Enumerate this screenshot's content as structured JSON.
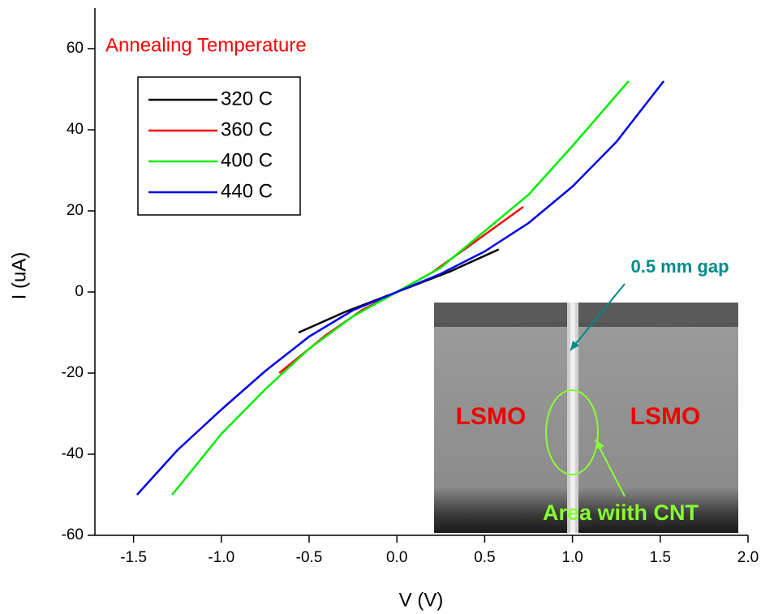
{
  "chart_data": {
    "type": "line",
    "xlabel": "V (V)",
    "ylabel": "I (uA)",
    "legend_title": "Annealing Temperature",
    "legend_title_color": "#ff0000",
    "xlim": [
      -1.72,
      2.0
    ],
    "ylim": [
      -60,
      70
    ],
    "xticks": [
      -1.5,
      {
        "value": -1.0,
        "label": "-1.0"
      },
      -0.5,
      {
        "value": 0.0,
        "label": "0.0"
      },
      0.5,
      {
        "value": 1.0,
        "label": "1.0"
      },
      1.5,
      {
        "value": 2.0,
        "label": "2.0"
      }
    ],
    "yticks": [
      -60,
      -40,
      -20,
      0,
      20,
      40,
      60
    ],
    "series": [
      {
        "name": "320 C",
        "color": "#000000",
        "x": [
          -0.56,
          -0.3,
          0,
          0.3,
          0.58
        ],
        "values": [
          -10,
          -5,
          0,
          5,
          10.5
        ]
      },
      {
        "name": "360 C",
        "color": "#ff0000",
        "x": [
          -0.67,
          -0.4,
          -0.2,
          0,
          0.2,
          0.4,
          0.72
        ],
        "values": [
          -20,
          -10.5,
          -4.5,
          0,
          4.8,
          11,
          21
        ]
      },
      {
        "name": "400 C",
        "color": "#00ee00",
        "x": [
          -1.28,
          -1.0,
          -0.75,
          -0.5,
          -0.25,
          0,
          0.25,
          0.5,
          0.75,
          1.0,
          1.32
        ],
        "values": [
          -50,
          -35,
          -24,
          -14,
          -6,
          0,
          6,
          15,
          24,
          36,
          52
        ]
      },
      {
        "name": "440 C",
        "color": "#0000ee",
        "x": [
          -1.48,
          -1.25,
          -1.0,
          -0.75,
          -0.5,
          -0.25,
          0,
          0.25,
          0.5,
          0.75,
          1.0,
          1.25,
          1.52
        ],
        "values": [
          -50,
          -39,
          -29,
          -19.5,
          -11,
          -4.5,
          0,
          4.5,
          10,
          17,
          26,
          37,
          52
        ]
      }
    ],
    "annotations": {
      "gap": "0.5 mm gap",
      "left_material": "LSMO",
      "right_material": "LSMO",
      "area": "Area wiith CNT"
    }
  }
}
